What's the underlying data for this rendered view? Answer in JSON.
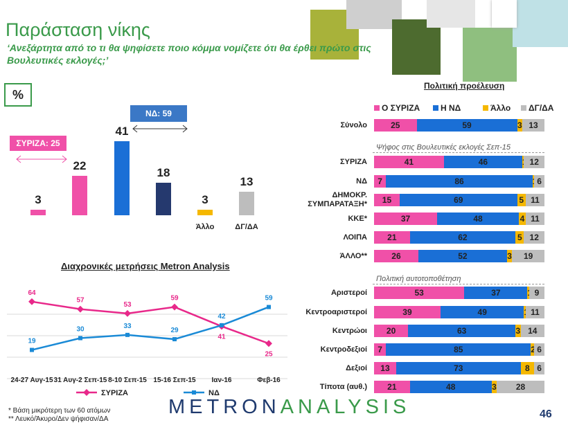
{
  "header": {
    "title": "Παράσταση νίκης",
    "subtitle": "‘Ανεξάρτητα από το τι θα ψηφίσετε ποιο κόμμα νομίζετε ότι θα έρθει πρώτο στις Βουλευτικές εκλογές;’"
  },
  "percent_label": "%",
  "colors": {
    "syriza": "#f050a8",
    "nd": "#1a6fd6",
    "allo": "#f5b800",
    "dg": "#bdbdbd",
    "dark": "#25396e",
    "green": "#3a9a4a"
  },
  "callouts": {
    "syriza": "ΣΥΡΙΖΑ: 25",
    "nd": "ΝΔ: 59"
  },
  "chart_data": [
    {
      "type": "bar",
      "title": "",
      "categories": [
        "",
        "",
        "",
        "",
        "Άλλο",
        "ΔΓ/ΔΑ"
      ],
      "values": [
        3,
        22,
        41,
        18,
        3,
        13
      ],
      "colors": [
        "#f050a8",
        "#f050a8",
        "#1a6fd6",
        "#25396e",
        "#f5b800",
        "#bdbdbd"
      ],
      "ylim": [
        0,
        45
      ]
    },
    {
      "type": "bar",
      "stacked": true,
      "orientation": "horizontal",
      "title": "Πολιτική προέλευση",
      "series_names": [
        "Ο ΣΥΡΙΖΑ",
        "Η ΝΔ",
        "Άλλο",
        "ΔΓ/ΔΑ"
      ],
      "section_labels": [
        "Ψήφος στις Βουλευτικές εκλογές Σεπ-15",
        "Πολιτική αυτοτοποθέτηση"
      ],
      "rows": [
        {
          "label": "Σύνολο",
          "values": [
            25,
            59,
            3,
            13
          ]
        },
        {
          "label": "ΣΥΡΙΖΑ",
          "values": [
            41,
            46,
            1,
            12
          ]
        },
        {
          "label": "ΝΔ",
          "values": [
            7,
            86,
            1,
            6
          ]
        },
        {
          "label": "ΔΗΜΟΚΡ. ΣΥΜΠΑΡΑΤΑΞΗ*",
          "values": [
            15,
            69,
            5,
            11
          ]
        },
        {
          "label": "ΚΚΕ*",
          "values": [
            37,
            48,
            4,
            11
          ]
        },
        {
          "label": "ΛΟΙΠΑ",
          "values": [
            21,
            62,
            5,
            12
          ]
        },
        {
          "label": "ΆΛΛΟ**",
          "values": [
            26,
            52,
            3,
            19
          ]
        },
        {
          "label": "Αριστεροί",
          "values": [
            53,
            37,
            1,
            9
          ]
        },
        {
          "label": "Κεντροαριστεροί",
          "values": [
            39,
            49,
            1,
            11
          ]
        },
        {
          "label": "Κεντρώοι",
          "values": [
            20,
            63,
            3,
            14
          ]
        },
        {
          "label": "Κεντροδεξιοί",
          "values": [
            7,
            85,
            2,
            6
          ]
        },
        {
          "label": "Δεξιοί",
          "values": [
            13,
            73,
            8,
            6
          ]
        },
        {
          "label": "Τίποτα (αυθ.)",
          "values": [
            21,
            48,
            3,
            28
          ]
        }
      ]
    },
    {
      "type": "line",
      "title": "Διαχρονικές μετρήσεις Metron Analysis",
      "x": [
        "24-27 Αυγ-15",
        "31 Αυγ-2 Σεπ-15",
        "8-10 Σεπ-15",
        "15-16 Σεπ-15",
        "Ιαν-16",
        "Φεβ-16"
      ],
      "series": [
        {
          "name": "ΣΥΡΙΖΑ",
          "values": [
            64,
            57,
            53,
            59,
            41,
            25
          ],
          "color": "#e8288a"
        },
        {
          "name": "ΝΔ",
          "values": [
            19,
            30,
            33,
            29,
            42,
            59
          ],
          "color": "#1a8ad6"
        }
      ],
      "ylim": [
        0,
        80
      ]
    }
  ],
  "footnotes": [
    "*  Βάση μικρότερη των 60 ατόμων",
    "** Λευκό/Άκυρο/Δεν ψήφισαν/ΔΑ"
  ],
  "brand": {
    "part1": "METRON",
    "part2": "ANALYSIS"
  },
  "page_number": "46"
}
